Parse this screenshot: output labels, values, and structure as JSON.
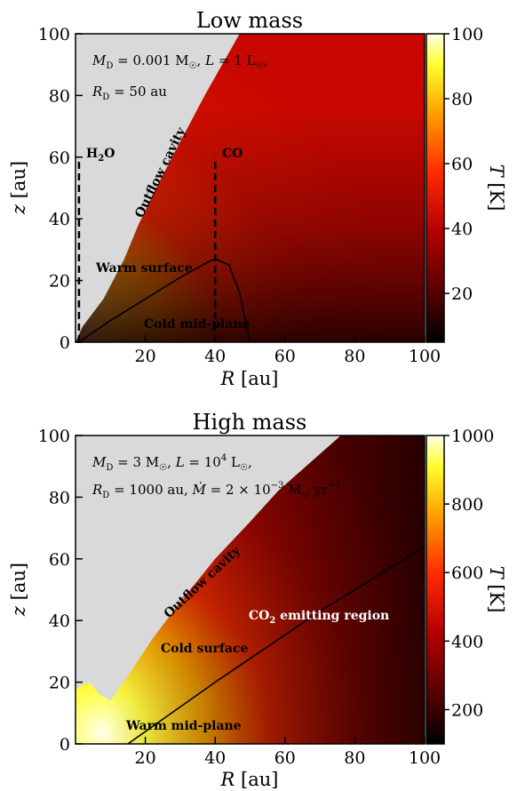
{
  "chart_data": [
    {
      "type": "heatmap",
      "title": "Low mass",
      "xlabel": "R [au]",
      "ylabel": "z [au]",
      "colorbar_label": "T [K]",
      "xlim": [
        0,
        100
      ],
      "ylim": [
        0,
        100
      ],
      "clim": [
        5,
        100
      ],
      "xticks": [
        "20",
        "40",
        "60",
        "80",
        "100"
      ],
      "yticks": [
        "0",
        "20",
        "40",
        "60",
        "80",
        "100"
      ],
      "cticks": [
        "20",
        "40",
        "60",
        "80",
        "100"
      ],
      "colormap": [
        "#000000",
        "#5a0000",
        "#b50000",
        "#ff2a00",
        "#ffa500",
        "#ffff30",
        "#ffffe8"
      ],
      "cavity_color": "#d9d9d9",
      "params": {
        "line1": "M_D = 0.001 M_☉, L = 1 L_☉,",
        "line2": "R_D = 50 au"
      },
      "annotations": [
        "Outflow cavity",
        "Warm surface",
        "Cold mid-plane"
      ],
      "snowlines": [
        {
          "label": "H2O",
          "x": 1,
          "y_top": 60
        },
        {
          "label": "CO",
          "x": 40,
          "y_top": 60
        }
      ],
      "cavity_boundary": [
        [
          0,
          0
        ],
        [
          2,
          5
        ],
        [
          8,
          14
        ],
        [
          14,
          27
        ],
        [
          18,
          38
        ],
        [
          24,
          52
        ],
        [
          30,
          65
        ],
        [
          37,
          80
        ],
        [
          44,
          94
        ],
        [
          47,
          100
        ]
      ],
      "regions": {
        "warm_surface_boundary": [
          [
            1,
            0
          ],
          [
            10,
            7
          ],
          [
            20,
            14
          ],
          [
            30,
            21
          ],
          [
            38,
            26
          ],
          [
            40,
            27
          ],
          [
            44,
            25
          ],
          [
            47,
            16
          ],
          [
            50,
            0
          ]
        ],
        "note": "Warm surface above curve, cold mid-plane below"
      }
    },
    {
      "type": "heatmap",
      "title": "High mass",
      "xlabel": "R [au]",
      "ylabel": "z [au]",
      "colorbar_label": "T [K]",
      "xlim": [
        0,
        100
      ],
      "ylim": [
        0,
        100
      ],
      "clim": [
        100,
        1000
      ],
      "xticks": [
        "20",
        "40",
        "60",
        "80",
        "100"
      ],
      "yticks": [
        "0",
        "20",
        "40",
        "60",
        "80",
        "100"
      ],
      "cticks": [
        "200",
        "400",
        "600",
        "800",
        "1000"
      ],
      "colormap": [
        "#000000",
        "#5a0000",
        "#b50000",
        "#ff2a00",
        "#ffa500",
        "#ffff30",
        "#ffffe8"
      ],
      "cavity_color": "#d9d9d9",
      "params": {
        "line1": "M_D = 3 M_☉, L = 10^4 L_☉,",
        "line2": "R_D = 1000 au, Ṁ = 2 × 10^−3 M_☉ yr^−1"
      },
      "annotations": [
        "Outflow cavity",
        "Cold surface",
        "Warm mid-plane",
        "CO2 emitting region"
      ],
      "cavity_boundary": [
        [
          0,
          18
        ],
        [
          4,
          20
        ],
        [
          7,
          16
        ],
        [
          10,
          14
        ],
        [
          15,
          22
        ],
        [
          22,
          34
        ],
        [
          30,
          46
        ],
        [
          40,
          60
        ],
        [
          50,
          72
        ],
        [
          58,
          82
        ],
        [
          66,
          90
        ],
        [
          74,
          98
        ],
        [
          76,
          100
        ]
      ],
      "regions": {
        "co2_boundary": [
          [
            15,
            0
          ],
          [
            40,
            20
          ],
          [
            70,
            43
          ],
          [
            100,
            64
          ]
        ],
        "note": "CO2 emitting region above-left of line"
      }
    }
  ],
  "panels_text": {
    "top": {
      "title": "Low mass",
      "ylabel_z": "z",
      "ylabel_unit": " [au]",
      "xlabel_R": "R",
      "xlabel_unit": " [au]",
      "cbar_T": "T",
      "cbar_unit": " [K]",
      "annot_outflow": "Outflow cavity",
      "annot_warm": "Warm surface",
      "annot_cold": "Cold mid-plane",
      "snow_h2o": "H",
      "snow_h2o_sub": "2",
      "snow_h2o_end": "O",
      "snow_co": "CO"
    },
    "bottom": {
      "title": "High mass",
      "ylabel_z": "z",
      "ylabel_unit": " [au]",
      "xlabel_R": "R",
      "xlabel_unit": " [au]",
      "cbar_T": "T",
      "cbar_unit": " [K]",
      "annot_outflow": "Outflow cavity",
      "annot_cold": "Cold surface",
      "annot_warm": "Warm mid-plane",
      "annot_co2_a": "CO",
      "annot_co2_sub": "2",
      "annot_co2_b": " emitting region"
    }
  }
}
